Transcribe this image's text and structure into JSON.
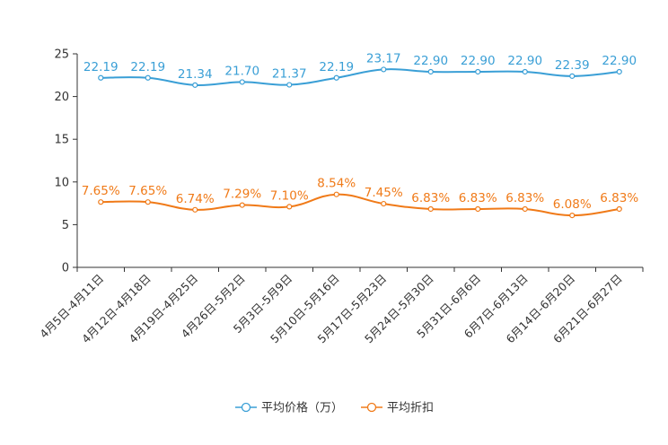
{
  "chart_data": {
    "type": "line",
    "title": "",
    "xlabel": "",
    "ylabel": "",
    "ylim": [
      0,
      25
    ],
    "yticks": [
      0,
      5,
      10,
      15,
      20,
      25
    ],
    "categories": [
      "4月5日-4月11日",
      "4月12日-4月18日",
      "4月19日-4月25日",
      "4月26日-5月2日",
      "5月3日-5月9日",
      "5月10日-5月16日",
      "5月17日-5月23日",
      "5月24日-5月30日",
      "5月31日-6月6日",
      "6月7日-6月13日",
      "6月14日-6月20日",
      "6月21日-6月27日"
    ],
    "series": [
      {
        "name": "平均价格（万）",
        "color": "#3a9fd6",
        "values": [
          22.19,
          22.19,
          21.34,
          21.7,
          21.37,
          22.19,
          23.17,
          22.9,
          22.9,
          22.9,
          22.39,
          22.9
        ],
        "labels": [
          "22.19",
          "22.19",
          "21.34",
          "21.70",
          "21.37",
          "22.19",
          "23.17",
          "22.90",
          "22.90",
          "22.90",
          "22.39",
          "22.90"
        ]
      },
      {
        "name": "平均折扣",
        "color": "#f07a18",
        "values": [
          7.65,
          7.65,
          6.74,
          7.29,
          7.1,
          8.54,
          7.45,
          6.83,
          6.83,
          6.83,
          6.08,
          6.83
        ],
        "labels": [
          "7.65%",
          "7.65%",
          "6.74%",
          "7.29%",
          "7.10%",
          "8.54%",
          "7.45%",
          "6.83%",
          "6.83%",
          "6.83%",
          "6.08%",
          "6.83%"
        ]
      }
    ],
    "legend": "bottom",
    "grid": false
  }
}
